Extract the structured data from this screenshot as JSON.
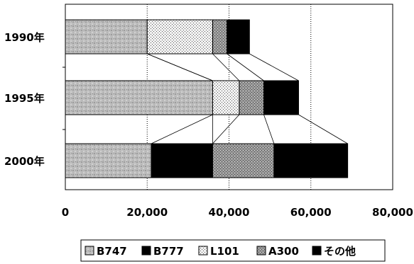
{
  "chart_data": {
    "type": "bar",
    "orientation": "horizontal",
    "stacked": true,
    "title": "",
    "xlabel": "",
    "ylabel": "",
    "categories": [
      "1990年",
      "1995年",
      "2000年"
    ],
    "series": [
      {
        "name": "B747",
        "values": [
          20000,
          36000,
          21000
        ],
        "color": "#b8b8b8",
        "pattern": "mottled-gray"
      },
      {
        "name": "B777",
        "values": [
          0,
          0,
          15000
        ],
        "color": "#000000",
        "pattern": "solid-black"
      },
      {
        "name": "L101",
        "values": [
          16000,
          6500,
          0
        ],
        "color": "#e6e6e6",
        "pattern": "dotted-light"
      },
      {
        "name": "A300",
        "values": [
          3500,
          6000,
          15000
        ],
        "color": "#909090",
        "pattern": "hatched-dark-gray"
      },
      {
        "name": "その他",
        "values": [
          5500,
          8500,
          18000
        ],
        "color": "#000000",
        "pattern": "solid-black"
      }
    ],
    "xlim": [
      0,
      80000
    ],
    "xticks": [
      "0",
      "20,000",
      "40,000",
      "60,000",
      "80,000"
    ],
    "xtick_values": [
      0,
      20000,
      40000,
      60000,
      80000
    ],
    "grid": "vertical-major",
    "series_lines": true,
    "legend_position": "bottom"
  }
}
